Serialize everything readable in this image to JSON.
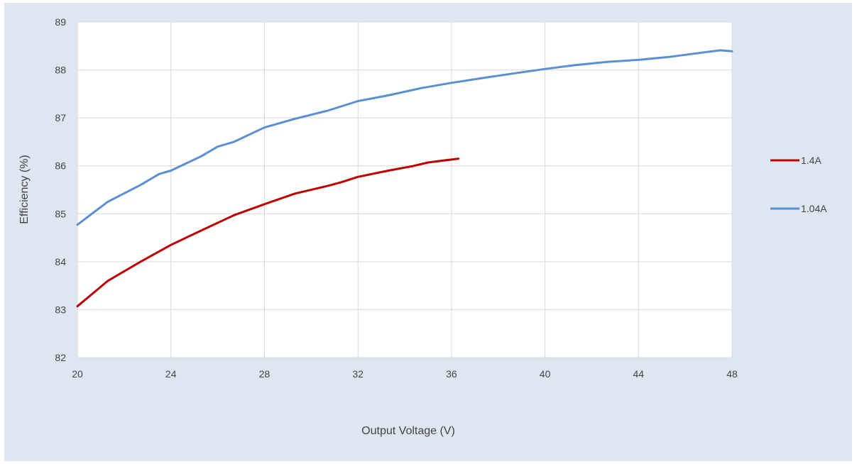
{
  "chart_data": {
    "type": "line",
    "title": "",
    "xlabel": "Output Voltage (V)",
    "ylabel": "Efficiency (%)",
    "xlim": [
      20,
      48
    ],
    "ylim": [
      82,
      89
    ],
    "x_ticks": [
      20,
      24,
      28,
      32,
      36,
      40,
      44,
      48
    ],
    "y_ticks": [
      82,
      83,
      84,
      85,
      86,
      87,
      88,
      89
    ],
    "grid": true,
    "legend_position": "right",
    "series": [
      {
        "name": "1.4A",
        "color": "#c00000",
        "x": [
          20,
          21.3,
          22.7,
          24,
          25.3,
          26.7,
          28,
          29.3,
          30.7,
          31.3,
          32,
          33.3,
          34.3,
          35,
          36.3
        ],
        "y": [
          83.07,
          83.6,
          84.0,
          84.35,
          84.65,
          84.97,
          85.2,
          85.42,
          85.58,
          85.66,
          85.77,
          85.9,
          85.99,
          86.07,
          86.15
        ]
      },
      {
        "name": "1.04A",
        "color": "#5b8fd4",
        "x": [
          20,
          21.3,
          22.7,
          23.5,
          24,
          25.3,
          26,
          26.7,
          28,
          29.3,
          30.7,
          32,
          33.3,
          34.7,
          36,
          37.3,
          38.7,
          40,
          41.3,
          42.7,
          44,
          45.3,
          46.7,
          47.5,
          48
        ],
        "y": [
          84.77,
          85.25,
          85.6,
          85.83,
          85.9,
          86.2,
          86.4,
          86.5,
          86.8,
          86.98,
          87.15,
          87.35,
          87.47,
          87.62,
          87.73,
          87.83,
          87.93,
          88.02,
          88.1,
          88.17,
          88.21,
          88.27,
          88.36,
          88.41,
          88.39
        ]
      }
    ]
  }
}
